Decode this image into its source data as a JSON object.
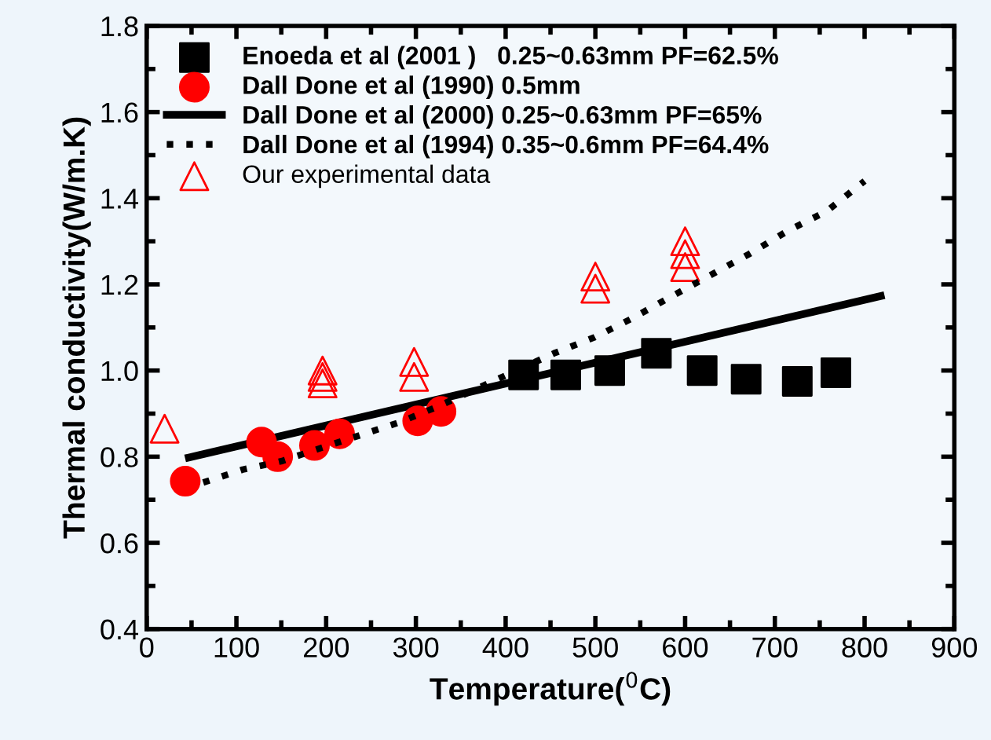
{
  "chart_data": {
    "type": "scatter",
    "xlabel": "Temperature($^{0}$C)",
    "ylabel": "Thermal conductivity(W/m.K)",
    "xlim": [
      0,
      900
    ],
    "ylim": [
      0.4,
      1.8
    ],
    "xticks": [
      0,
      100,
      200,
      300,
      400,
      500,
      600,
      700,
      800,
      900
    ],
    "yticks": [
      {
        "value": 0.4,
        "label": "0.4"
      },
      {
        "value": 0.6,
        "label": "0.6"
      },
      {
        "value": 0.8,
        "label": "0.8"
      },
      {
        "value": 1.0,
        "label": "1.0"
      },
      {
        "value": 1.2,
        "label": "1.2"
      },
      {
        "value": 1.4,
        "label": "1.4"
      },
      {
        "value": 1.6,
        "label": "1.6"
      },
      {
        "value": 1.8,
        "label": "1.8"
      }
    ],
    "grid": false,
    "legend": "top left",
    "series": [
      {
        "name": "Enoeda et al (2001 )   0.25~0.63mm PF=62.5%",
        "marker": "square",
        "color": "#000000",
        "x": [
          420,
          467,
          516,
          568,
          619,
          668,
          725,
          768
        ],
        "values": [
          0.99,
          0.99,
          1.0,
          1.04,
          1.0,
          0.98,
          0.975,
          0.995
        ]
      },
      {
        "name": "Dall Done et al (1990) 0.5mm",
        "marker": "circle",
        "color": "#ff0000",
        "x": [
          43,
          128,
          146,
          187,
          215,
          302,
          328
        ],
        "values": [
          0.743,
          0.834,
          0.8,
          0.826,
          0.853,
          0.883,
          0.905
        ]
      },
      {
        "name": "Dall Done et al (2000) 0.25~0.63mm PF=65%",
        "type": "line",
        "line_style": "solid",
        "color": "#000000",
        "x": [
          47,
          818
        ],
        "values": [
          0.798,
          1.173
        ]
      },
      {
        "name": "Dall Done et al (1994) 0.35~0.6mm PF=64.4%",
        "type": "line",
        "line_style": "dotted",
        "color": "#000000",
        "x": [
          63,
          107,
          151,
          194,
          238,
          282,
          325,
          454,
          499,
          540,
          583,
          627,
          671,
          715,
          758,
          800
        ],
        "values": [
          0.74,
          0.77,
          0.79,
          0.82,
          0.85,
          0.88,
          0.917,
          1.04,
          1.077,
          1.12,
          1.17,
          1.22,
          1.27,
          1.325,
          1.37,
          1.44
        ]
      },
      {
        "name": "Our experimental data",
        "marker": "triangle",
        "color": "#ff0000",
        "x": [
          20,
          196,
          196,
          196,
          298,
          298,
          500,
          500,
          600,
          600,
          600
        ],
        "values": [
          0.865,
          1.0,
          0.985,
          0.97,
          1.02,
          0.985,
          1.218,
          1.19,
          1.3,
          1.27,
          1.24
        ]
      }
    ]
  }
}
